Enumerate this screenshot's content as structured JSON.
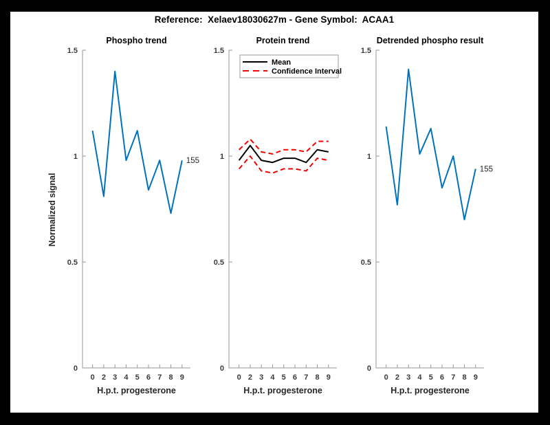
{
  "figure_title": "Reference:  Xelaev18030627m - Gene Symbol:  ACAA1",
  "ylabel": "Normalized signal",
  "colors": {
    "blue": "#0072BD",
    "red": "#F40000",
    "black": "#000000",
    "axis": "#949494",
    "tick_text": "#3a3a3a",
    "figure_background": "#FFFFFF",
    "page_background": "#000000",
    "legend_border": "#999999"
  },
  "shared_axes": {
    "y_tick_values": [
      0,
      0.5,
      1,
      1.5
    ],
    "y_tick_labels": [
      "0",
      "0.5",
      "1",
      "1.5"
    ],
    "ylim": [
      0,
      1.5
    ],
    "x_tick_labels": [
      "0",
      "2",
      "3",
      "4",
      "5",
      "6",
      "7",
      "8",
      "9"
    ]
  },
  "chart_data": [
    {
      "type": "line",
      "title": "Phospho trend",
      "xlabel": "H.p.t. progesterone",
      "categories": [
        "0",
        "2",
        "3",
        "4",
        "5",
        "6",
        "7",
        "8",
        "9"
      ],
      "ylim": [
        0,
        1.5
      ],
      "grid": false,
      "series": [
        {
          "name": "phospho-signal-155",
          "color": "blue",
          "style": "solid",
          "values": [
            1.12,
            0.81,
            1.4,
            0.98,
            1.12,
            0.84,
            0.98,
            0.73,
            0.98
          ]
        }
      ],
      "end_label": "155"
    },
    {
      "type": "line",
      "title": "Protein trend",
      "xlabel": "H.p.t. progesterone",
      "categories": [
        "0",
        "2",
        "3",
        "4",
        "5",
        "6",
        "7",
        "8",
        "9"
      ],
      "ylim": [
        0,
        1.5
      ],
      "grid": false,
      "series": [
        {
          "name": "mean",
          "color": "black",
          "style": "solid",
          "values": [
            0.98,
            1.05,
            0.98,
            0.97,
            0.99,
            0.99,
            0.97,
            1.03,
            1.02
          ]
        },
        {
          "name": "confidence-interval-upper",
          "color": "red",
          "style": "dashed",
          "values": [
            1.03,
            1.08,
            1.02,
            1.01,
            1.03,
            1.03,
            1.02,
            1.07,
            1.07
          ]
        },
        {
          "name": "confidence-interval-lower",
          "color": "red",
          "style": "dashed",
          "values": [
            0.94,
            1.0,
            0.93,
            0.92,
            0.94,
            0.94,
            0.93,
            0.99,
            0.98
          ]
        }
      ],
      "legend": {
        "position": "top-left",
        "entries": [
          {
            "label": "Mean",
            "color": "black",
            "style": "solid"
          },
          {
            "label": "Confidence Interval",
            "color": "red",
            "style": "dashed"
          }
        ]
      }
    },
    {
      "type": "line",
      "title": "Detrended phospho result",
      "xlabel": "H.p.t. progesterone",
      "categories": [
        "0",
        "2",
        "3",
        "4",
        "5",
        "6",
        "7",
        "8",
        "9"
      ],
      "ylim": [
        0,
        1.5
      ],
      "grid": false,
      "series": [
        {
          "name": "detrended-phospho-signal-155",
          "color": "blue",
          "style": "solid",
          "values": [
            1.14,
            0.77,
            1.41,
            1.01,
            1.13,
            0.85,
            1.0,
            0.7,
            0.94
          ]
        }
      ],
      "end_label": "155"
    }
  ]
}
